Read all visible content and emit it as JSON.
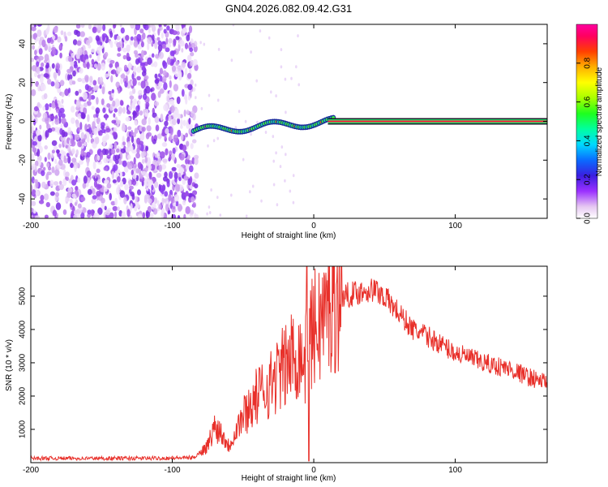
{
  "title": "GN04.2026.082.09.42.G31",
  "chart_data": [
    {
      "type": "heatmap",
      "xlabel": "Height of straight line (km)",
      "ylabel": "Frequency (Hz)",
      "xlim": [
        -200,
        165
      ],
      "ylim": [
        -50,
        50
      ],
      "x_ticks": [
        -200,
        -100,
        0,
        100
      ],
      "y_ticks": [
        -40,
        -20,
        0,
        20,
        40
      ],
      "colorbar": {
        "label": "Normalized spectral amplitude",
        "range": [
          0,
          1
        ],
        "ticks": [
          0.0,
          0.2,
          0.4,
          0.6,
          0.8
        ]
      },
      "regions": [
        {
          "name": "noise",
          "x_range": [
            -200,
            -85
          ],
          "freq_range": [
            -50,
            50
          ],
          "amplitude": 0.1
        },
        {
          "name": "onset",
          "x_range": [
            -85,
            15
          ],
          "freq_offset_approx": [
            -5,
            2
          ],
          "amplitude": 0.5
        },
        {
          "name": "stable-signal",
          "x_range": [
            15,
            165
          ],
          "freq": 0,
          "amplitude": 1.0
        }
      ]
    },
    {
      "type": "line",
      "xlabel": "Height of straight line (km)",
      "ylabel": "SNR (10 * v/v)",
      "xlim": [
        -200,
        165
      ],
      "ylim": [
        0,
        5900
      ],
      "x_ticks": [
        -200,
        -100,
        0,
        100
      ],
      "y_ticks": [
        1000,
        2000,
        3000,
        4000,
        5000
      ],
      "series": [
        {
          "name": "SNR",
          "color": "#e8302a",
          "x": [
            -200,
            -180,
            -160,
            -140,
            -120,
            -100,
            -85,
            -75,
            -70,
            -65,
            -60,
            -55,
            -50,
            -45,
            -40,
            -35,
            -30,
            -25,
            -20,
            -15,
            -10,
            -6,
            -4,
            0,
            5,
            10,
            15,
            20,
            30,
            40,
            45,
            50,
            60,
            70,
            80,
            100,
            120,
            140,
            150,
            165
          ],
          "values": [
            130,
            130,
            130,
            130,
            130,
            140,
            150,
            500,
            1100,
            900,
            500,
            1000,
            1400,
            1700,
            2000,
            2200,
            2400,
            2700,
            2900,
            3200,
            3300,
            3000,
            3700,
            4000,
            4300,
            4600,
            4800,
            5000,
            5100,
            5200,
            5150,
            5000,
            4500,
            4000,
            3800,
            3300,
            3000,
            2800,
            2600,
            2400
          ]
        }
      ]
    }
  ]
}
